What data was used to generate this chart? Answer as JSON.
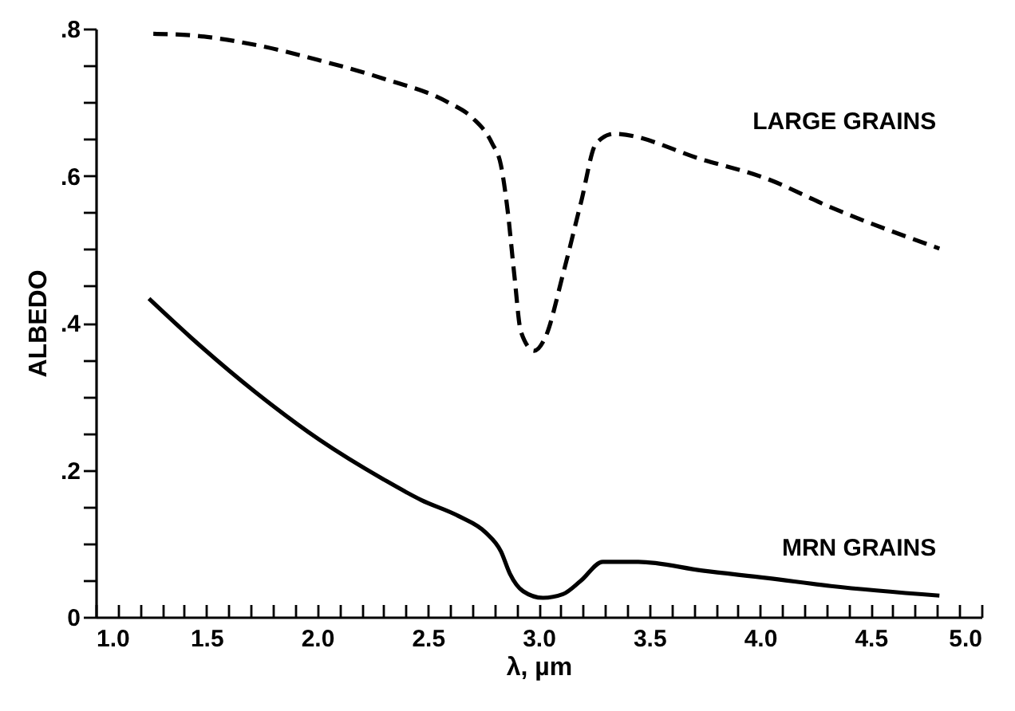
{
  "chart_data": {
    "type": "line",
    "xlabel": "λ, µm",
    "ylabel": "ALBEDO",
    "xlim": [
      1.0,
      5.0
    ],
    "ylim": [
      0,
      0.8
    ],
    "xticks": [
      {
        "value": 1.0,
        "label": "1.0"
      },
      {
        "value": 1.1,
        "label": null
      },
      {
        "value": 1.2,
        "label": null
      },
      {
        "value": 1.3,
        "label": null
      },
      {
        "value": 1.4,
        "label": null
      },
      {
        "value": 1.5,
        "label": "1.5"
      },
      {
        "value": 1.6,
        "label": null
      },
      {
        "value": 1.7,
        "label": null
      },
      {
        "value": 1.8,
        "label": null
      },
      {
        "value": 1.9,
        "label": null
      },
      {
        "value": 2.0,
        "label": "2.0"
      },
      {
        "value": 2.1,
        "label": null
      },
      {
        "value": 2.2,
        "label": null
      },
      {
        "value": 2.3,
        "label": null
      },
      {
        "value": 2.4,
        "label": null
      },
      {
        "value": 2.5,
        "label": "2.5"
      },
      {
        "value": 2.6,
        "label": null
      },
      {
        "value": 2.7,
        "label": null
      },
      {
        "value": 2.8,
        "label": null
      },
      {
        "value": 2.9,
        "label": null
      },
      {
        "value": 3.0,
        "label": "3.0"
      },
      {
        "value": 3.1,
        "label": null
      },
      {
        "value": 3.2,
        "label": null
      },
      {
        "value": 3.3,
        "label": null
      },
      {
        "value": 3.4,
        "label": null
      },
      {
        "value": 3.5,
        "label": "3.5"
      },
      {
        "value": 3.6,
        "label": null
      },
      {
        "value": 3.7,
        "label": null
      },
      {
        "value": 3.8,
        "label": null
      },
      {
        "value": 3.9,
        "label": null
      },
      {
        "value": 4.0,
        "label": "4.0"
      },
      {
        "value": 4.1,
        "label": null
      },
      {
        "value": 4.2,
        "label": null
      },
      {
        "value": 4.3,
        "label": null
      },
      {
        "value": 4.4,
        "label": null
      },
      {
        "value": 4.5,
        "label": "4.5"
      },
      {
        "value": 4.6,
        "label": null
      },
      {
        "value": 4.7,
        "label": null
      },
      {
        "value": 4.8,
        "label": null
      },
      {
        "value": 4.9,
        "label": null
      },
      {
        "value": 5.0,
        "label": "5.0"
      }
    ],
    "yticks": [
      0,
      {
        "value": 0.05,
        "label": null
      },
      {
        "value": 0.1,
        "label": null
      },
      {
        "value": 0.15,
        "label": null
      },
      {
        "value": 0.2,
        "label": ".2"
      },
      {
        "value": 0.25,
        "label": null
      },
      {
        "value": 0.3,
        "label": null
      },
      {
        "value": 0.35,
        "label": null
      },
      {
        "value": 0.4,
        "label": ".4"
      },
      {
        "value": 0.45,
        "label": null
      },
      {
        "value": 0.5,
        "label": null
      },
      {
        "value": 0.55,
        "label": null
      },
      {
        "value": 0.6,
        "label": ".6"
      },
      {
        "value": 0.65,
        "label": null
      },
      {
        "value": 0.7,
        "label": null
      },
      {
        "value": 0.75,
        "label": null
      },
      {
        "value": 0.8,
        "label": ".8"
      }
    ],
    "series": [
      {
        "name": "LARGE GRAINS",
        "color": "#000000",
        "line_style": "dashed",
        "x": [
          1.26,
          1.43,
          1.72,
          2.01,
          2.3,
          2.59,
          2.7,
          2.79,
          2.83,
          2.86,
          2.89,
          2.92,
          2.98,
          3.03,
          3.11,
          3.19,
          3.26,
          3.34,
          3.74,
          4.03,
          4.32,
          4.81
        ],
        "values": [
          0.793,
          0.791,
          0.778,
          0.757,
          0.732,
          0.7,
          0.679,
          0.644,
          0.614,
          0.553,
          0.466,
          0.388,
          0.362,
          0.38,
          0.466,
          0.562,
          0.644,
          0.657,
          0.622,
          0.596,
          0.557,
          0.501
        ]
      },
      {
        "name": "MRN GRAINS",
        "color": "#000000",
        "line_style": "solid",
        "x": [
          1.24,
          1.43,
          1.72,
          2.01,
          2.3,
          2.47,
          2.64,
          2.76,
          2.83,
          2.87,
          2.93,
          3.02,
          3.11,
          3.19,
          3.29,
          3.45,
          3.74,
          4.03,
          4.32,
          4.81
        ],
        "values": [
          0.433,
          0.38,
          0.306,
          0.241,
          0.187,
          0.159,
          0.137,
          0.115,
          0.089,
          0.059,
          0.035,
          0.026,
          0.031,
          0.049,
          0.075,
          0.075,
          0.063,
          0.053,
          0.042,
          0.029
        ]
      }
    ]
  }
}
